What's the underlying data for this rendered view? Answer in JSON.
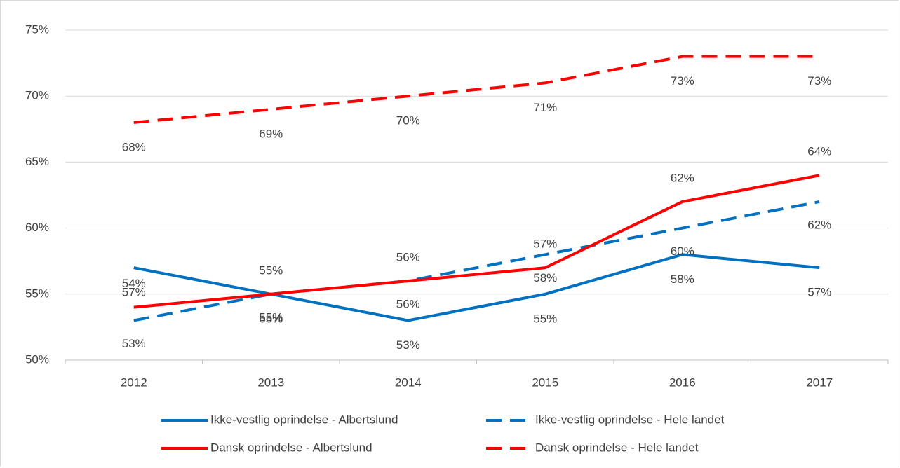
{
  "chart_data": {
    "type": "line",
    "categories": [
      "2012",
      "2013",
      "2014",
      "2015",
      "2016",
      "2017"
    ],
    "ylim": [
      50,
      75
    ],
    "yticks": [
      {
        "value": 50,
        "label": "50%"
      },
      {
        "value": 55,
        "label": "55%"
      },
      {
        "value": 60,
        "label": "60%"
      },
      {
        "value": 65,
        "label": "65%"
      },
      {
        "value": 70,
        "label": "70%"
      },
      {
        "value": 75,
        "label": "75%"
      }
    ],
    "grid": true,
    "legend": "bottom",
    "series": [
      {
        "name": "Ikke-vestlig oprindelse - Albertslund",
        "color": "#0070c0",
        "dash": false,
        "values": [
          57,
          55,
          53,
          55,
          58,
          57
        ],
        "value_labels": [
          "57%",
          "55%",
          "53%",
          "55%",
          "58%",
          "57%"
        ]
      },
      {
        "name": "Ikke-vestlig oprindelse - Hele landet",
        "color": "#0070c0",
        "dash": true,
        "values": [
          53,
          55,
          56,
          58,
          60,
          62
        ],
        "value_labels": [
          "53%",
          "55%",
          "56%",
          "58%",
          "60%",
          "62%"
        ]
      },
      {
        "name": "Dansk oprindelse - Albertslund",
        "color": "#ff0000",
        "dash": false,
        "values": [
          54,
          55,
          56,
          57,
          62,
          64
        ],
        "value_labels": [
          "54%",
          "55%",
          "56%",
          "57%",
          "62%",
          "64%"
        ]
      },
      {
        "name": "Dansk oprindelse - Hele landet",
        "color": "#ff0000",
        "dash": true,
        "values": [
          68,
          69,
          70,
          71,
          73,
          73
        ],
        "value_labels": [
          "68%",
          "69%",
          "70%",
          "71%",
          "73%",
          "73%"
        ]
      }
    ]
  }
}
